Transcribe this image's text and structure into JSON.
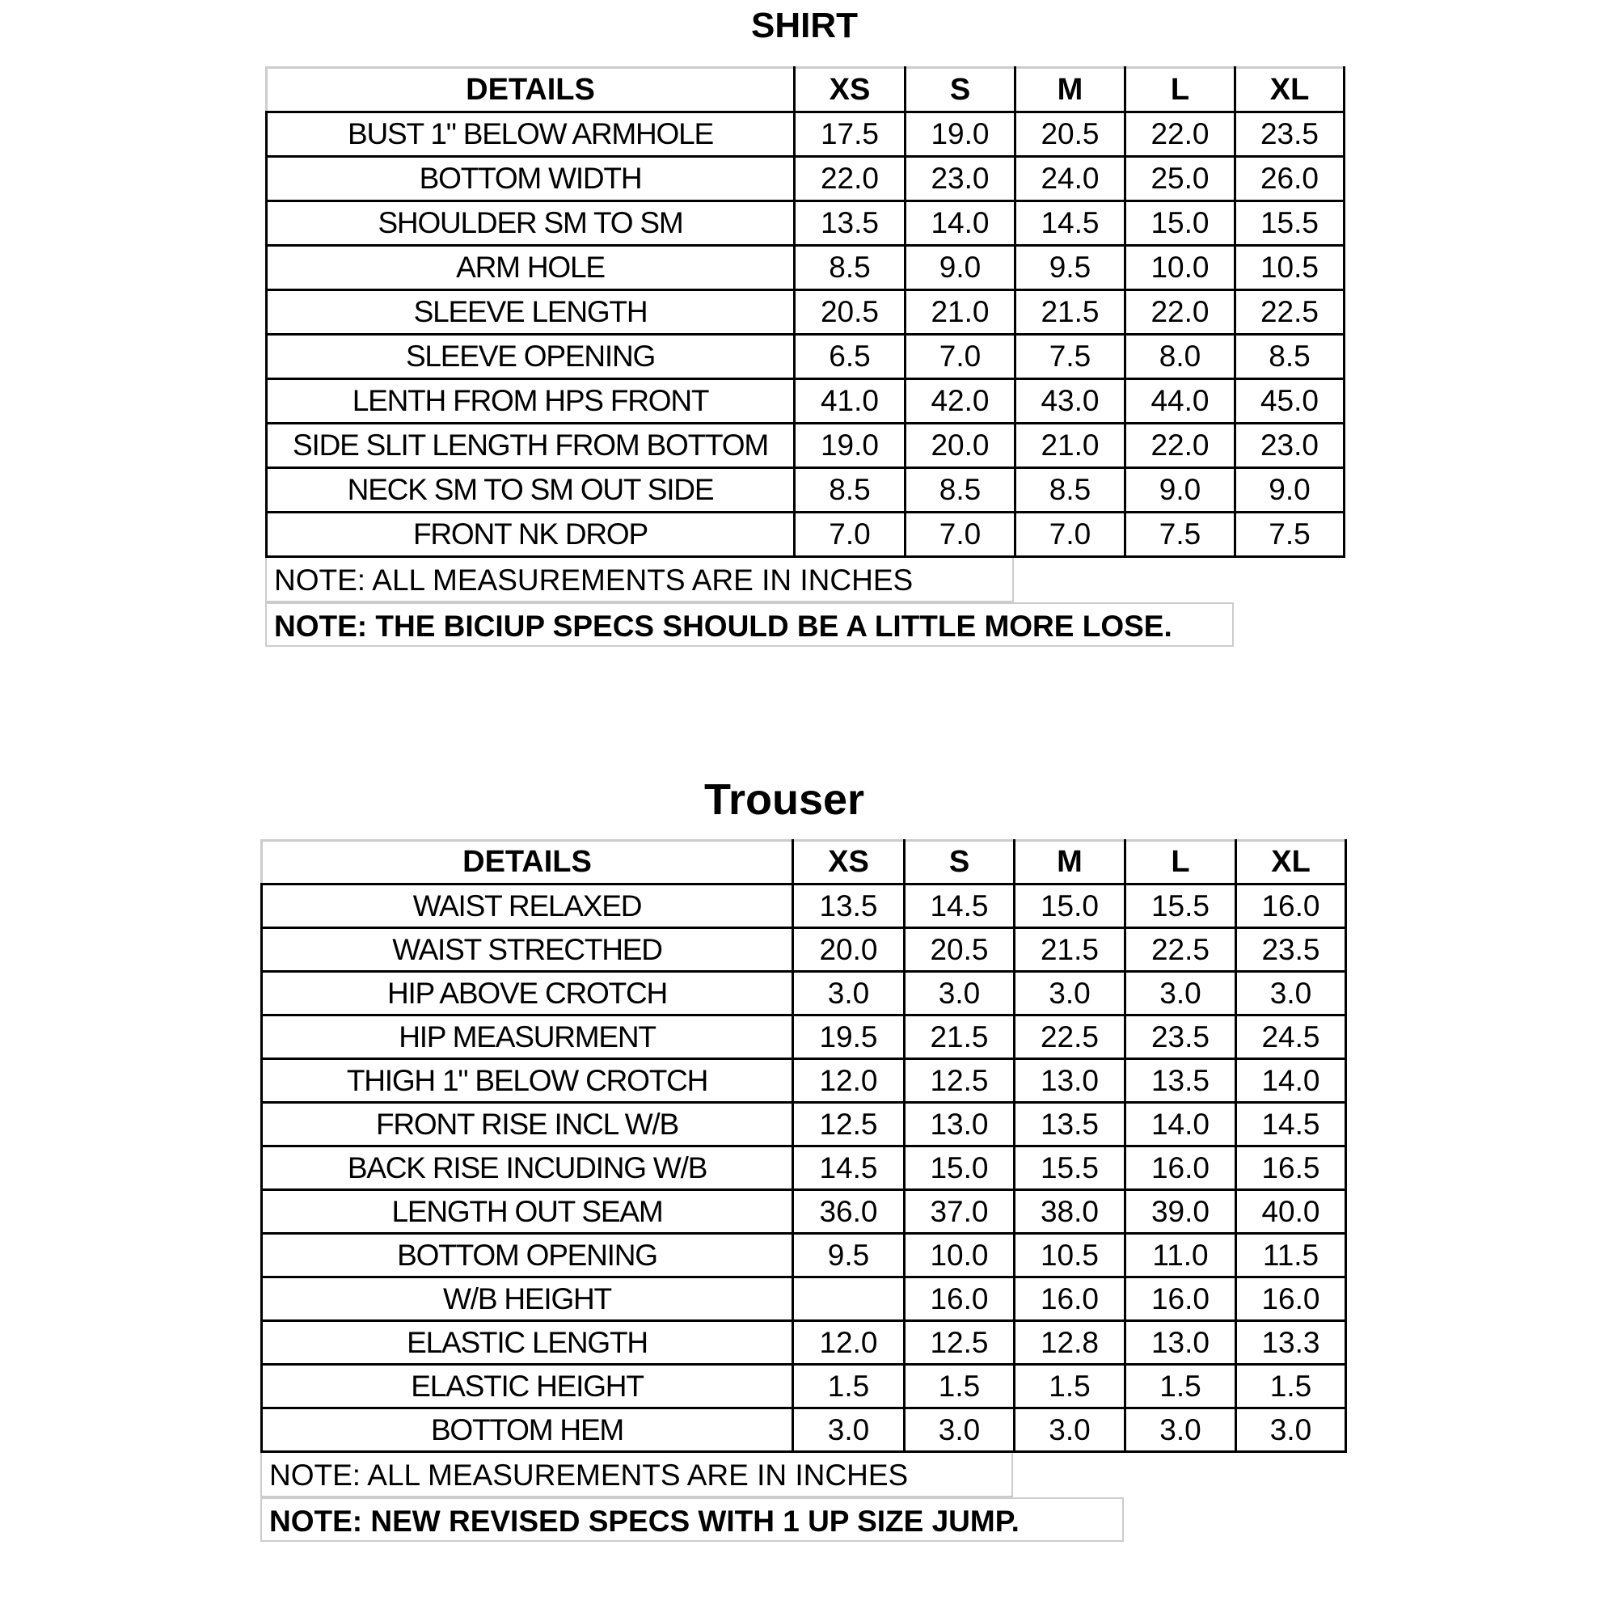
{
  "shirt": {
    "title": "SHIRT",
    "headers": [
      "DETAILS",
      "XS",
      "S",
      "M",
      "L",
      "XL"
    ],
    "rows": [
      [
        "BUST 1\" BELOW ARMHOLE",
        "17.5",
        "19.0",
        "20.5",
        "22.0",
        "23.5"
      ],
      [
        "BOTTOM WIDTH",
        "22.0",
        "23.0",
        "24.0",
        "25.0",
        "26.0"
      ],
      [
        "SHOULDER SM TO SM",
        "13.5",
        "14.0",
        "14.5",
        "15.0",
        "15.5"
      ],
      [
        "ARM HOLE",
        "8.5",
        "9.0",
        "9.5",
        "10.0",
        "10.5"
      ],
      [
        "SLEEVE LENGTH",
        "20.5",
        "21.0",
        "21.5",
        "22.0",
        "22.5"
      ],
      [
        "SLEEVE OPENING",
        "6.5",
        "7.0",
        "7.5",
        "8.0",
        "8.5"
      ],
      [
        "LENTH FROM HPS FRONT",
        "41.0",
        "42.0",
        "43.0",
        "44.0",
        "45.0"
      ],
      [
        "SIDE SLIT LENGTH FROM BOTTOM",
        "19.0",
        "20.0",
        "21.0",
        "22.0",
        "23.0"
      ],
      [
        "NECK SM TO SM OUT SIDE",
        "8.5",
        "8.5",
        "8.5",
        "9.0",
        "9.0"
      ],
      [
        "FRONT NK DROP",
        "7.0",
        "7.0",
        "7.0",
        "7.5",
        "7.5"
      ]
    ],
    "note1": "NOTE: ALL MEASUREMENTS ARE IN INCHES",
    "note2": "NOTE: THE BICIUP SPECS SHOULD BE A LITTLE MORE LOSE."
  },
  "trouser": {
    "title": "Trouser",
    "headers": [
      "DETAILS",
      "XS",
      "S",
      "M",
      "L",
      "XL"
    ],
    "rows": [
      [
        "WAIST RELAXED",
        "13.5",
        "14.5",
        "15.0",
        "15.5",
        "16.0"
      ],
      [
        "WAIST STRECTHED",
        "20.0",
        "20.5",
        "21.5",
        "22.5",
        "23.5"
      ],
      [
        "HIP ABOVE CROTCH",
        "3.0",
        "3.0",
        "3.0",
        "3.0",
        "3.0"
      ],
      [
        "HIP MEASURMENT",
        "19.5",
        "21.5",
        "22.5",
        "23.5",
        "24.5"
      ],
      [
        "THIGH 1\" BELOW CROTCH",
        "12.0",
        "12.5",
        "13.0",
        "13.5",
        "14.0"
      ],
      [
        "FRONT RISE INCL W/B",
        "12.5",
        "13.0",
        "13.5",
        "14.0",
        "14.5"
      ],
      [
        "BACK RISE INCUDING W/B",
        "14.5",
        "15.0",
        "15.5",
        "16.0",
        "16.5"
      ],
      [
        "LENGTH OUT SEAM",
        "36.0",
        "37.0",
        "38.0",
        "39.0",
        "40.0"
      ],
      [
        "BOTTOM OPENING",
        "9.5",
        "10.0",
        "10.5",
        "11.0",
        "11.5"
      ],
      [
        "W/B HEIGHT",
        "",
        "16.0",
        "16.0",
        "16.0",
        "16.0"
      ],
      [
        "ELASTIC LENGTH",
        "12.0",
        "12.5",
        "12.8",
        "13.0",
        "13.3"
      ],
      [
        "ELASTIC HEIGHT",
        "1.5",
        "1.5",
        "1.5",
        "1.5",
        "1.5"
      ],
      [
        "BOTTOM HEM",
        "3.0",
        "3.0",
        "3.0",
        "3.0",
        "3.0"
      ]
    ],
    "note1": "NOTE: ALL MEASUREMENTS ARE IN INCHES",
    "note2": "NOTE: NEW REVISED SPECS WITH 1 UP SIZE JUMP."
  }
}
